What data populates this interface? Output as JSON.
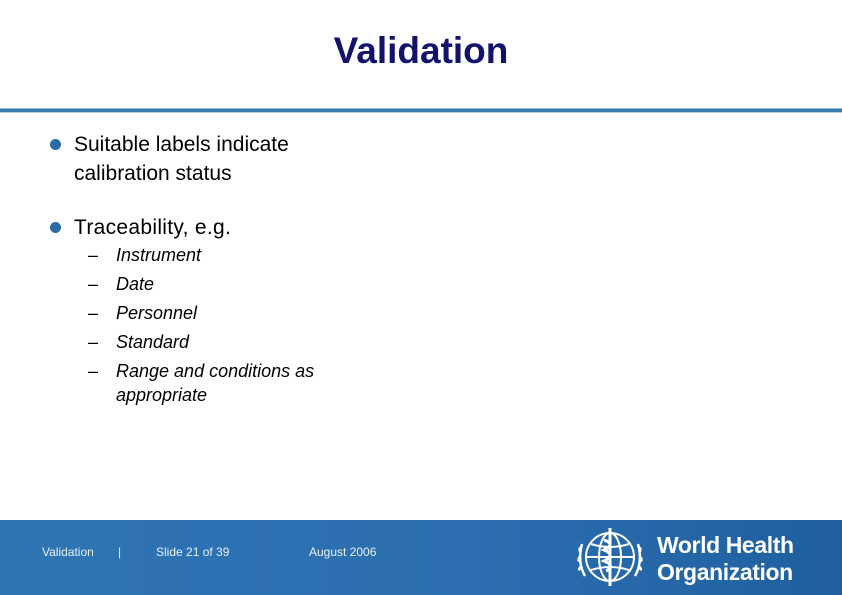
{
  "slide": {
    "title": "Validation",
    "bullets": [
      {
        "text": "Suitable labels indicate calibration status"
      },
      {
        "text": "Traceability, e.g.",
        "subitems": [
          "Instrument",
          "Date",
          "Personnel",
          "Standard",
          "Range and conditions as appropriate"
        ]
      }
    ],
    "sub_marker": "–",
    "bullet_color": "#2c6aa6",
    "title_color": "#13136b"
  },
  "footer": {
    "title": "Validation",
    "separator": "|",
    "slide_number": "Slide 21  of 39",
    "date": "August 2006",
    "logo": {
      "icon": "who-emblem-icon",
      "line1": "World Health",
      "line2": "Organization"
    },
    "background_color": "#2f74b3"
  }
}
